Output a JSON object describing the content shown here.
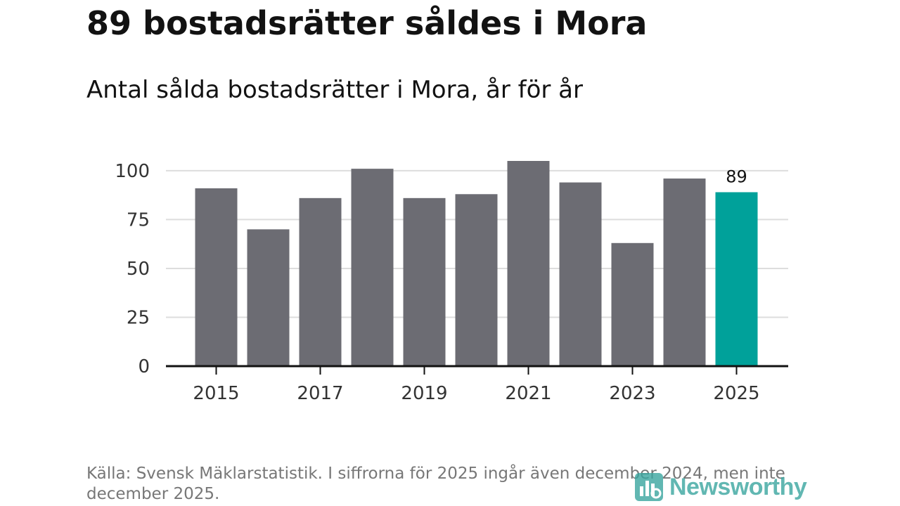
{
  "header": {
    "title": "89 bostadsrätter såldes i Mora",
    "subtitle": "Antal sålda bostadsrätter i Mora, år för år"
  },
  "chart_data": {
    "type": "bar",
    "title": "89 bostadsrätter såldes i Mora",
    "subtitle": "Antal sålda bostadsrätter i Mora, år för år",
    "xlabel": "",
    "ylabel": "",
    "ylim": [
      0,
      105
    ],
    "yticks": [
      0,
      25,
      50,
      75,
      100
    ],
    "grid": true,
    "categories": [
      "2015",
      "2016",
      "2017",
      "2018",
      "2019",
      "2020",
      "2021",
      "2022",
      "2023",
      "2024",
      "2025"
    ],
    "xtick_labels": [
      "2015",
      "2017",
      "2019",
      "2021",
      "2023",
      "2025"
    ],
    "values": [
      91,
      70,
      86,
      101,
      86,
      88,
      105,
      94,
      63,
      96,
      89
    ],
    "highlight_index": 10,
    "highlight_label": "89",
    "colors": {
      "bar": "#6c6c73",
      "highlight": "#00a19a",
      "grid": "#dddddd",
      "axis": "#121212",
      "tick_text": "#333333"
    }
  },
  "footer": {
    "source": "Källa: Svensk Mäklarstatistik. I siffrorna för 2025 ingår även december 2024, men inte december 2025.",
    "brand": "Newsworthy",
    "brand_icon": "newsworthy-logo-icon",
    "brand_color": "#3aa6a0"
  }
}
